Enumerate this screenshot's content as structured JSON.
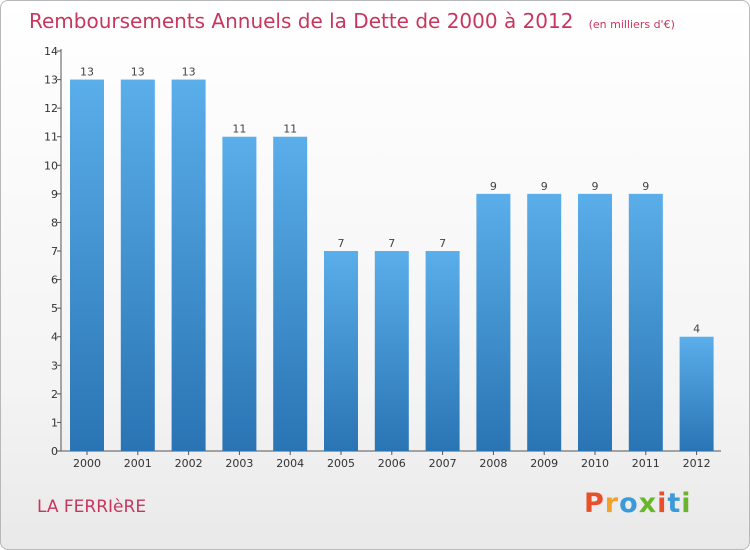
{
  "title": "Remboursements Annuels de la Dette de 2000 à 2012",
  "unit": "(en milliers d'€)",
  "commune": "LA FERRIèRE",
  "logo": {
    "letters": [
      "P",
      "r",
      "o",
      "x",
      "i",
      "t",
      "i"
    ],
    "colors": [
      "#e8502c",
      "#f2a22a",
      "#3c9ad8",
      "#6ab52d",
      "#e8502c",
      "#3c9ad8",
      "#6ab52d"
    ]
  },
  "colors": {
    "bar_top": "#5aaeea",
    "bar_bottom": "#2a74b4",
    "text": "#c8365e"
  },
  "chart_data": {
    "type": "bar",
    "title": "Remboursements Annuels de la Dette de 2000 à 2012",
    "xlabel": "",
    "ylabel": "",
    "categories": [
      "2000",
      "2001",
      "2002",
      "2003",
      "2004",
      "2005",
      "2006",
      "2007",
      "2008",
      "2009",
      "2010",
      "2011",
      "2012"
    ],
    "values": [
      13,
      13,
      13,
      11,
      11,
      7,
      7,
      7,
      9,
      9,
      9,
      9,
      4
    ],
    "ylim": [
      0,
      14
    ],
    "yticks": [
      "0",
      "1",
      "2",
      "3",
      "4",
      "5",
      "6",
      "7",
      "8",
      "9",
      "10",
      "11",
      "12",
      "13",
      "14"
    ],
    "grid": false,
    "legend": "none"
  }
}
